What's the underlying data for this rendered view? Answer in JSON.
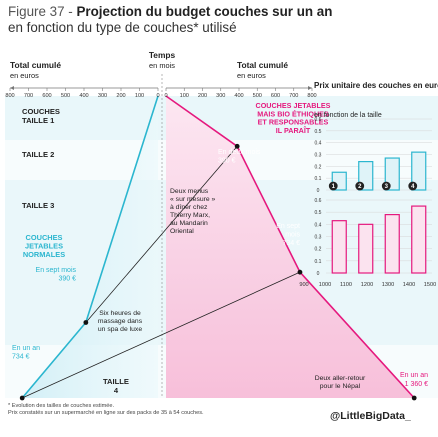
{
  "title": {
    "prefix": "Figure 37 -",
    "bold": "Projection du budget couches sur un an",
    "line2": "en fonction du type de couches* utilisé"
  },
  "axes": {
    "left_label_bold": "Total cumulé",
    "left_label_unit": "en euros",
    "center_label_bold": "Temps",
    "center_label_unit": "en mois",
    "right_label_bold": "Total cumulé",
    "right_label_unit": "en euros"
  },
  "left_scale": {
    "ticks": [
      800,
      700,
      600,
      500,
      400,
      300,
      200,
      100,
      0
    ],
    "range": [
      0,
      800
    ]
  },
  "right_scale": {
    "ticks": [
      0,
      100,
      200,
      300,
      400,
      500,
      600,
      700,
      800,
      900,
      1000,
      1100,
      1200,
      1300,
      1400,
      1500
    ],
    "tick_labels_top": [
      "0",
      "100",
      "200",
      "300",
      "400",
      "500",
      "600",
      "700",
      "800"
    ],
    "tick_labels_bottom": [
      "900",
      "1000",
      "1100",
      "1200",
      "1300",
      "1400",
      "1500"
    ],
    "range": [
      0,
      1500
    ]
  },
  "size_bands": [
    {
      "label": "COUCHES\nTAILLE 1"
    },
    {
      "label": "TAILLE 2"
    },
    {
      "label": "TAILLE 3"
    },
    {
      "label": "TAILLE\n4"
    }
  ],
  "series": {
    "normales": {
      "name": "COUCHES\nJETABLES\nNORMALES",
      "total_year": 734,
      "total_sept": 390,
      "color": "#2bb6cf"
    },
    "bio": {
      "name": "COUCHES JETABLES\nMAIS BIO ÉTHIQUES\nET RESPONSABLES\nIL PARAÎT",
      "total_year": 1360,
      "total_feb": 390,
      "total_sept": 734,
      "color": "#e5197e"
    }
  },
  "annotations": {
    "bio_feb": "En deux mois\n390 €",
    "bio_sept": "En sept\nmois\n734 €",
    "bio_year": "En un an\n1 360 €",
    "norm_sept": "En sept mois\n390 €",
    "norm_year": "En un an\n734 €",
    "eq_menus": "Deux menus\n« sur mesure »\nà dîner chez\nThierry Marx,\nau Mandarin\nOriental",
    "eq_massage": "Six heures de\nmassage dans\nun spa de luxe",
    "eq_nepal": "Deux aller-retour\npour le Népal"
  },
  "chart_data": {
    "type": "bar",
    "title": "Prix unitaire des couches en euros",
    "subtitle": "en fonction de la taille",
    "categories": [
      "1",
      "2",
      "3",
      "4"
    ],
    "ylim": [
      0,
      0.6
    ],
    "yticks": [
      "0",
      "0.1",
      "0.2",
      "0.3",
      "0.4",
      "0.5",
      "0.6"
    ],
    "series": [
      {
        "values": [
          0.15,
          0.24,
          0.27,
          0.32
        ],
        "color": "#2bb6cf"
      },
      {
        "values": [
          0.43,
          0.4,
          0.48,
          0.55
        ],
        "color": "#e5197e"
      }
    ]
  },
  "footer": {
    "line1": "* Evolution des tailles de couches estimée.",
    "line2": "Prix constatés sur un supermarché en ligne sur des packs de 35 à 54 couches."
  },
  "brand": "@LittleBigData_"
}
